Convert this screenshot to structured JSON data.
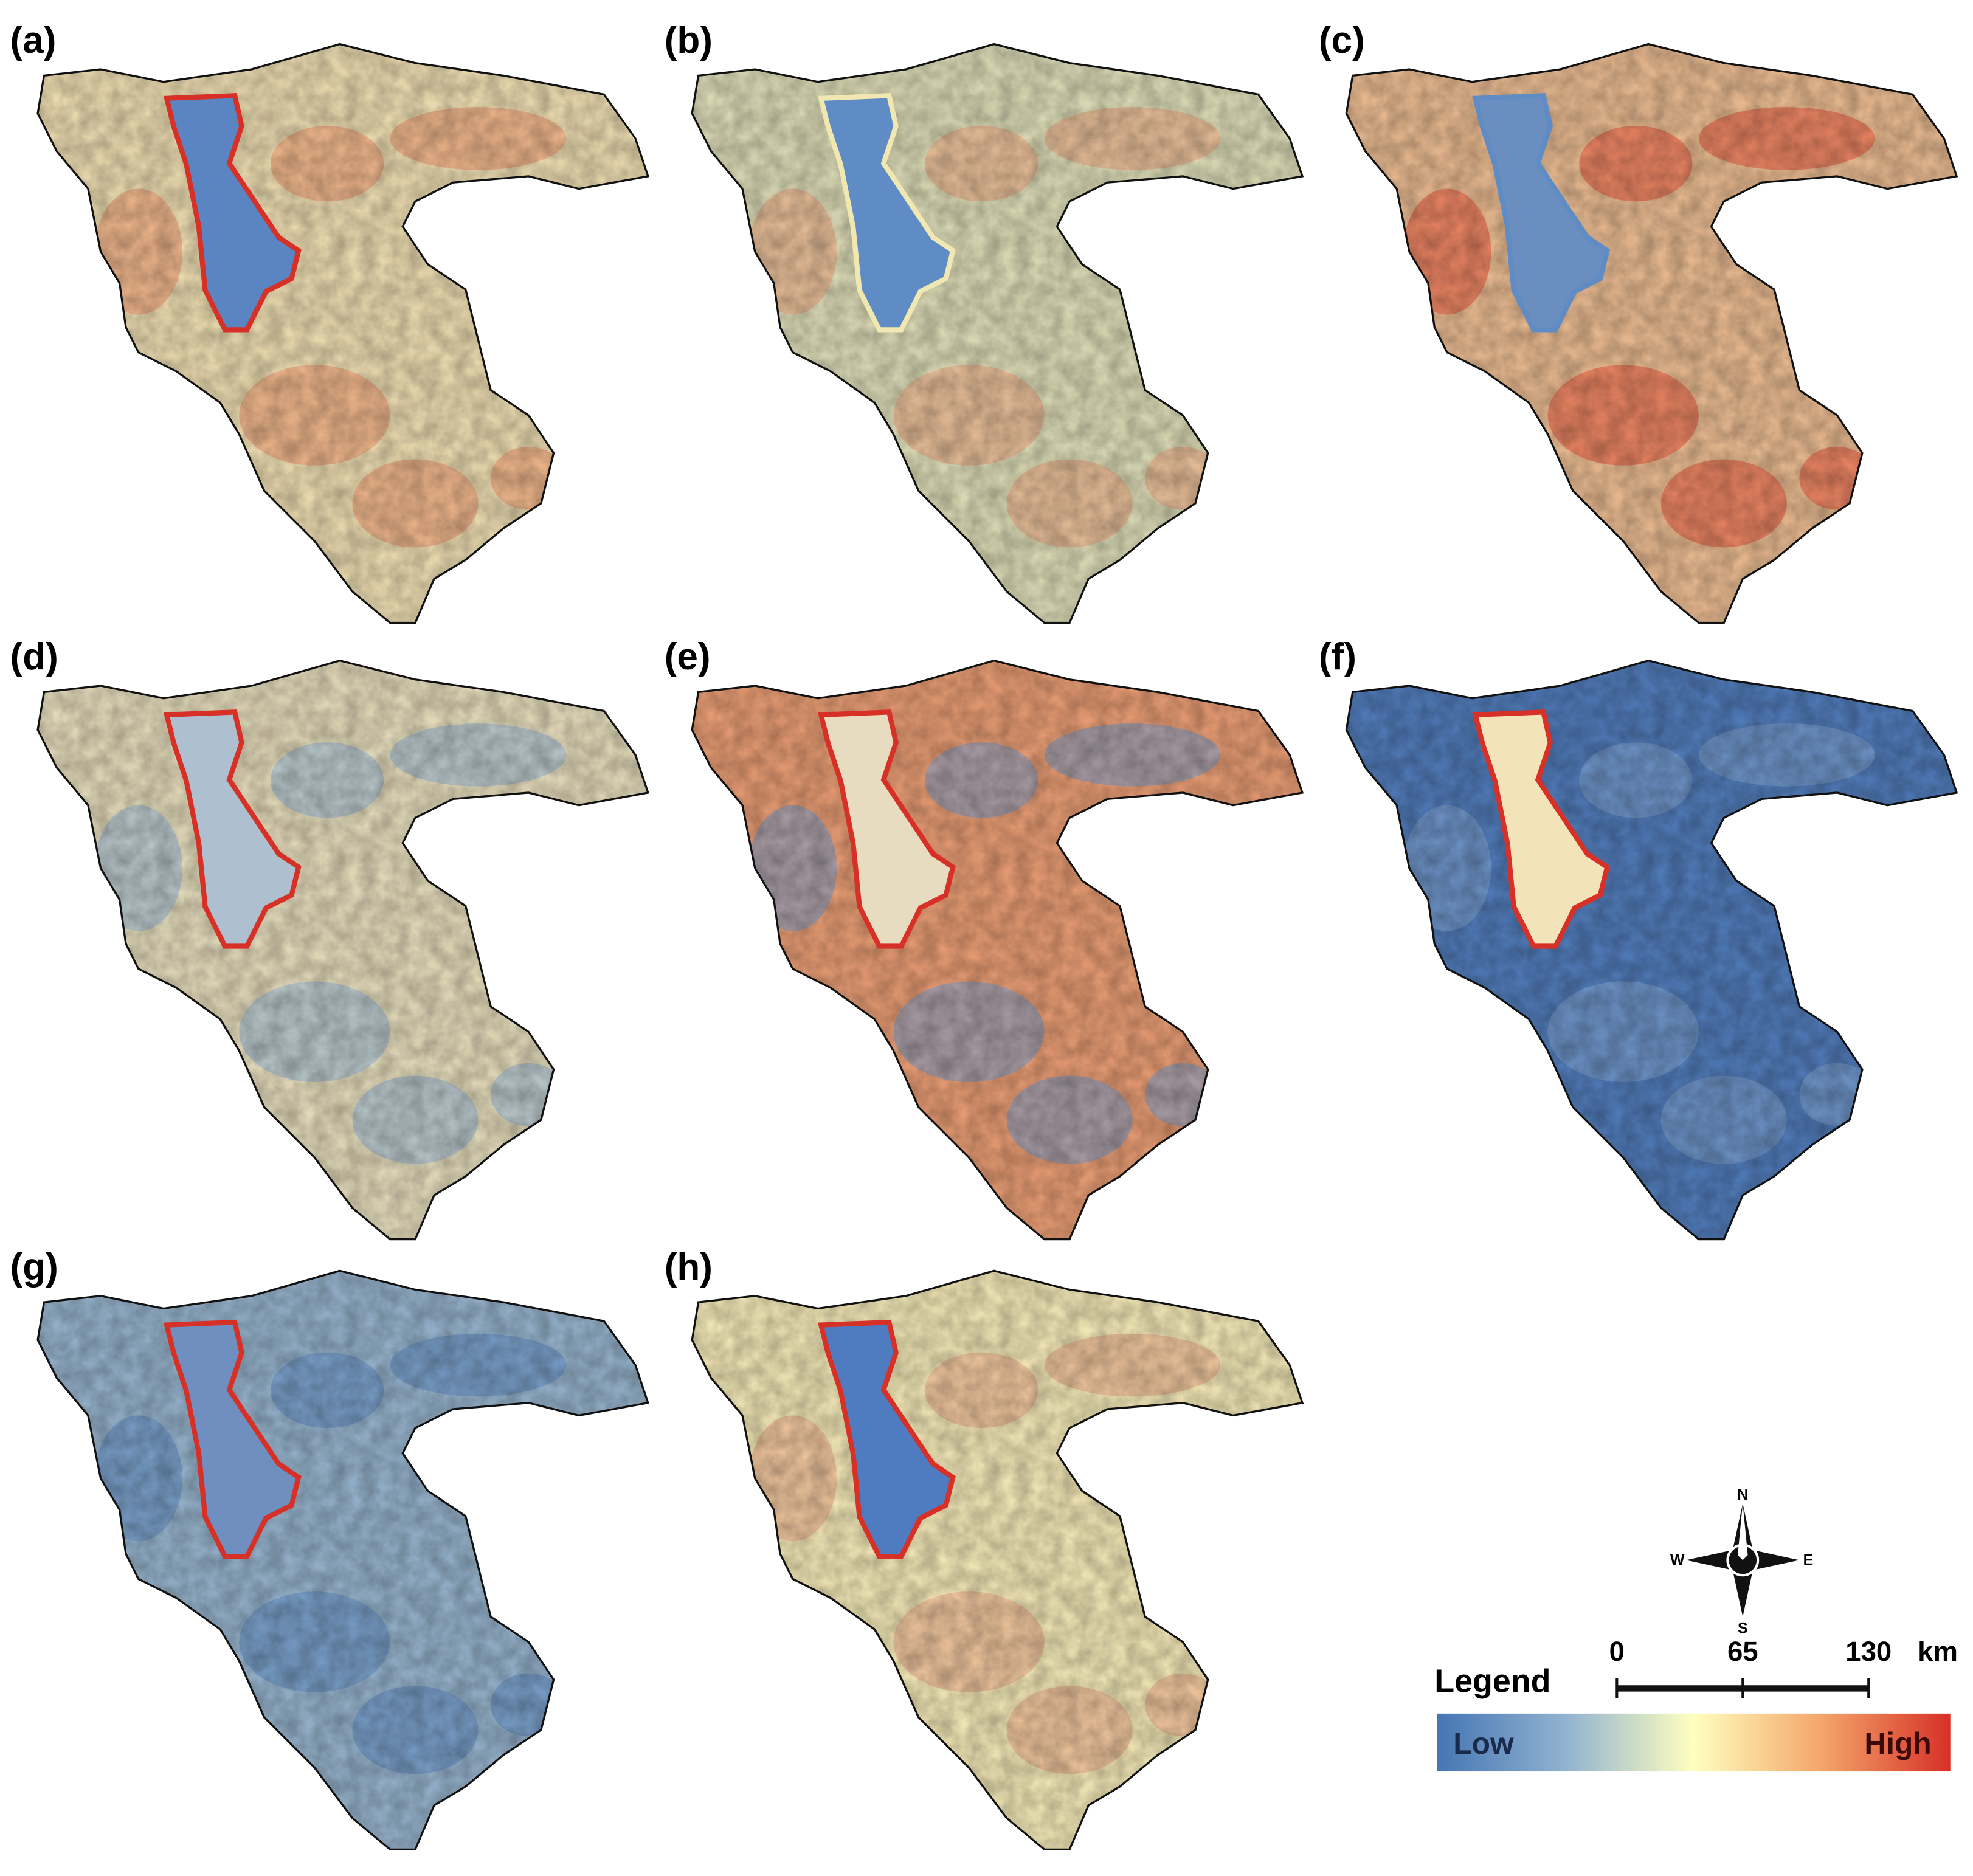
{
  "panels": [
    {
      "label": "(a)"
    },
    {
      "label": "(b)"
    },
    {
      "label": "(c)"
    },
    {
      "label": "(d)"
    },
    {
      "label": "(e)"
    },
    {
      "label": "(f)"
    },
    {
      "label": "(g)"
    },
    {
      "label": "(h)"
    }
  ],
  "legend": {
    "title": "Legend",
    "low": "Low",
    "high": "High"
  },
  "scale_bar": {
    "ticks": [
      0,
      65,
      130
    ],
    "unit": "km"
  },
  "compass": {
    "north": "N",
    "east": "E",
    "south": "S",
    "west": "W"
  }
}
